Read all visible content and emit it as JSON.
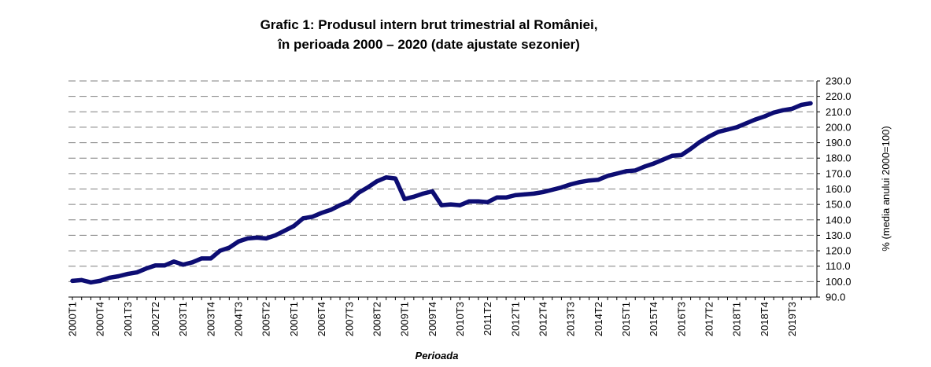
{
  "chart_data": {
    "type": "line",
    "title_line1": "Grafic 1: Produsul intern brut trimestrial al României,",
    "title_line2": "în perioada 2000 – 2020 (date ajustate sezonier)",
    "xlabel": "Perioada",
    "ylabel": "% (media anului 2000=100)",
    "ylim": [
      90,
      230
    ],
    "yticks": [
      "90.0",
      "100.0",
      "110.0",
      "120.0",
      "130.0",
      "140.0",
      "150.0",
      "160.0",
      "170.0",
      "180.0",
      "190.0",
      "200.0",
      "210.0",
      "220.0",
      "230.0"
    ],
    "grid": true,
    "line_color": "#0d0d73",
    "x_tick_labels": [
      "2000T1",
      "2000T4",
      "2001T3",
      "2002T2",
      "2003T1",
      "2003T4",
      "2004T3",
      "2005T2",
      "2006T1",
      "2006T4",
      "2007T3",
      "2008T2",
      "2009T1",
      "2009T4",
      "2010T3",
      "2011T2",
      "2012T1",
      "2012T4",
      "2013T3",
      "2014T2",
      "2015T1",
      "2015T4",
      "2016T3",
      "2017T2",
      "2018T1",
      "2018T4",
      "2019T3"
    ],
    "x": [
      "2000T1",
      "2000T2",
      "2000T3",
      "2000T4",
      "2001T1",
      "2001T2",
      "2001T3",
      "2001T4",
      "2002T1",
      "2002T2",
      "2002T3",
      "2002T4",
      "2003T1",
      "2003T2",
      "2003T3",
      "2003T4",
      "2004T1",
      "2004T2",
      "2004T3",
      "2004T4",
      "2005T1",
      "2005T2",
      "2005T3",
      "2005T4",
      "2006T1",
      "2006T2",
      "2006T3",
      "2006T4",
      "2007T1",
      "2007T2",
      "2007T3",
      "2007T4",
      "2008T1",
      "2008T2",
      "2008T3",
      "2008T4",
      "2009T1",
      "2009T2",
      "2009T3",
      "2009T4",
      "2010T1",
      "2010T2",
      "2010T3",
      "2010T4",
      "2011T1",
      "2011T2",
      "2011T3",
      "2011T4",
      "2012T1",
      "2012T2",
      "2012T3",
      "2012T4",
      "2013T1",
      "2013T2",
      "2013T3",
      "2013T4",
      "2014T1",
      "2014T2",
      "2014T3",
      "2014T4",
      "2015T1",
      "2015T2",
      "2015T3",
      "2015T4",
      "2016T1",
      "2016T2",
      "2016T3",
      "2016T4",
      "2017T1",
      "2017T2",
      "2017T3",
      "2017T4",
      "2018T1",
      "2018T2",
      "2018T3",
      "2018T4",
      "2019T1",
      "2019T2",
      "2019T3",
      "2019T4",
      "2020T1"
    ],
    "values": [
      100.5,
      101.0,
      99.5,
      100.5,
      102.5,
      103.5,
      105.0,
      106.0,
      108.5,
      110.5,
      110.5,
      113.0,
      111.0,
      112.5,
      115.0,
      115.0,
      120.0,
      122.0,
      126.0,
      128.0,
      128.5,
      128.0,
      130.0,
      133.0,
      136.0,
      141.0,
      142.0,
      144.5,
      146.5,
      149.5,
      152.0,
      157.5,
      161.0,
      165.0,
      167.5,
      166.8,
      153.5,
      155.0,
      157.0,
      158.5,
      149.5,
      150.0,
      149.5,
      152.0,
      152.0,
      151.5,
      154.5,
      154.5,
      156.0,
      156.5,
      157.0,
      158.0,
      159.5,
      161.0,
      163.0,
      164.5,
      165.5,
      166.0,
      168.5,
      170.0,
      171.5,
      172.0,
      174.5,
      176.5,
      179.0,
      181.5,
      182.0,
      186.0,
      190.5,
      194.0,
      197.0,
      198.5,
      200.0,
      202.5,
      205.0,
      207.0,
      209.5,
      211.0,
      212.0,
      214.5,
      215.5
    ]
  }
}
